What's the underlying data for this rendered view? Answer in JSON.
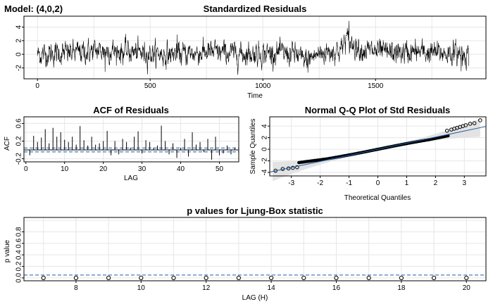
{
  "model_label": "Model: (4,0,2)",
  "colors": {
    "ink": "#000000",
    "grid": "#e6e6e6",
    "band": "#1f5fa8",
    "qq_fill": "#e3e3e3"
  },
  "chart_data": [
    {
      "id": "residuals",
      "type": "line",
      "title": "Standardized Residuals",
      "xlabel": "Time",
      "ylabel": "",
      "xlim": [
        -60,
        1990
      ],
      "ylim": [
        -3.6,
        5.6
      ],
      "xticks": [
        0,
        500,
        1000,
        1500
      ],
      "yticks": [
        -2,
        0,
        2,
        4
      ],
      "n": 1915,
      "series": [
        {
          "segments": [
            {
              "x": [
                0,
                150,
                300,
                450,
                600,
                750,
                900,
                1050,
                1150,
                1180,
                1250,
                1350,
                1370,
                1380,
                1450,
                1550,
                1700,
                1850,
                1915
              ],
              "level": [
                0,
                0.2,
                0.6,
                0.2,
                0.0,
                0.3,
                0.1,
                0.2,
                0.0,
                -1.0,
                0.1,
                0.8,
                2.5,
                1.8,
                0.6,
                0.2,
                0.3,
                0.1,
                0.0
              ]
            }
          ]
        }
      ],
      "extremes": [
        {
          "x": 1382,
          "y": 4.9
        },
        {
          "x": 1200,
          "y": -2.7
        },
        {
          "x": 300,
          "y": -2.6
        },
        {
          "x": 1880,
          "y": -2.5
        },
        {
          "x": 620,
          "y": 2.9
        }
      ]
    },
    {
      "id": "acf",
      "type": "bar",
      "title": "ACF of Residuals",
      "xlabel": "LAG",
      "ylabel": "ACF",
      "xlim": [
        -0.5,
        55
      ],
      "ylim": [
        -0.27,
        0.75
      ],
      "xticks": [
        0,
        10,
        20,
        30,
        40,
        50
      ],
      "yticks": [
        -0.2,
        0.2,
        0.6
      ],
      "ci": 0.045,
      "lags": [
        1,
        2,
        3,
        4,
        5,
        6,
        7,
        8,
        9,
        10,
        11,
        12,
        13,
        14,
        15,
        16,
        17,
        18,
        19,
        20,
        21,
        22,
        23,
        24,
        25,
        26,
        27,
        28,
        29,
        30,
        31,
        32,
        33,
        34,
        35,
        36,
        37,
        38,
        39,
        40,
        41,
        42,
        43,
        44,
        45,
        46,
        47,
        48,
        49,
        50,
        51,
        52,
        53,
        54
      ],
      "values": [
        -0.12,
        0.32,
        0.18,
        0.28,
        0.47,
        0.15,
        0.5,
        0.3,
        0.4,
        0.23,
        0.18,
        0.3,
        0.12,
        0.54,
        0.22,
        0.1,
        0.3,
        0.12,
        0.15,
        0.2,
        0.43,
        -0.12,
        0.2,
        -0.1,
        0.25,
        0.18,
        0.05,
        0.3,
        0.42,
        -0.08,
        0.22,
        0.18,
        0.05,
        0.1,
        0.55,
        0.2,
        -0.1,
        0.15,
        -0.18,
        0.05,
        0.25,
        -0.15,
        0.4,
        0.12,
        0.18,
        -0.05,
        0.25,
        -0.22,
        0.3,
        -0.12,
        -0.08,
        0.1,
        -0.1,
        0.05
      ]
    },
    {
      "id": "qq",
      "type": "scatter",
      "title": "Normal Q-Q Plot of Std Residuals",
      "xlabel": "Theoretical Quantiles",
      "ylabel": "Sample Quantiles",
      "xlim": [
        -3.75,
        3.75
      ],
      "ylim": [
        -4.6,
        5.6
      ],
      "xticks": [
        -3,
        -2,
        -1,
        0,
        1,
        2,
        3
      ],
      "yticks": [
        -4,
        -2,
        0,
        2,
        4
      ],
      "line": {
        "intercept": 0.0,
        "slope": 1.05
      },
      "upper_tail": [
        {
          "x": 2.4,
          "y": 3.2
        },
        {
          "x": 2.55,
          "y": 3.4
        },
        {
          "x": 2.65,
          "y": 3.55
        },
        {
          "x": 2.75,
          "y": 3.7
        },
        {
          "x": 2.85,
          "y": 3.85
        },
        {
          "x": 2.95,
          "y": 4.0
        },
        {
          "x": 3.05,
          "y": 4.15
        },
        {
          "x": 3.2,
          "y": 4.4
        },
        {
          "x": 3.35,
          "y": 4.5
        },
        {
          "x": 3.55,
          "y": 5.0
        }
      ],
      "lower_tail": [
        {
          "x": -3.55,
          "y": -3.7
        },
        {
          "x": -3.3,
          "y": -3.4
        },
        {
          "x": -3.1,
          "y": -3.3
        },
        {
          "x": -2.95,
          "y": -3.2
        },
        {
          "x": -2.8,
          "y": -3.1
        }
      ]
    },
    {
      "id": "ljung",
      "type": "scatter",
      "title": "p values for Ljung-Box statistic",
      "xlabel": "LAG (H)",
      "ylabel": "p value",
      "xlim": [
        6.4,
        20.6
      ],
      "ylim": [
        -0.05,
        1.05
      ],
      "xticks": [
        8,
        10,
        12,
        14,
        16,
        18,
        20
      ],
      "yticks": [
        0.0,
        0.2,
        0.4,
        0.6,
        0.8
      ],
      "threshold": 0.05,
      "x": [
        7,
        8,
        9,
        10,
        11,
        12,
        13,
        14,
        15,
        16,
        17,
        18,
        19,
        20
      ],
      "y": [
        0,
        0,
        0,
        0,
        0,
        0,
        0,
        0,
        0,
        0,
        0,
        0,
        0,
        0
      ]
    }
  ]
}
